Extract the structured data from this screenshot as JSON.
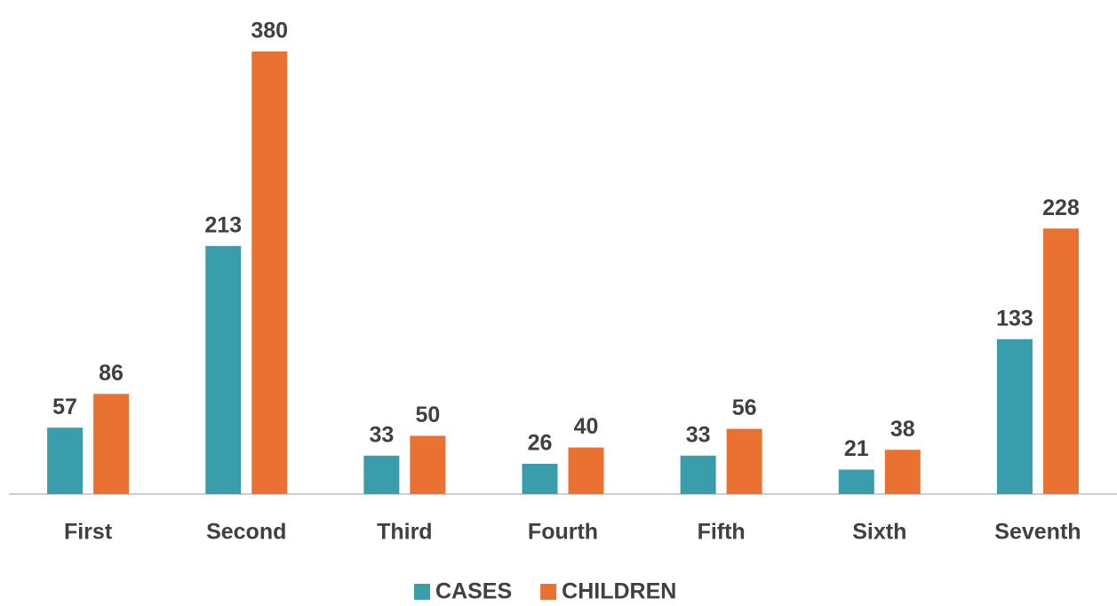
{
  "chart_data": {
    "type": "bar",
    "categories": [
      "First",
      "Second",
      "Third",
      "Fourth",
      "Fifth",
      "Sixth",
      "Seventh"
    ],
    "series": [
      {
        "name": "CASES",
        "color": "#3a9dab",
        "values": [
          57,
          213,
          33,
          26,
          33,
          21,
          133
        ]
      },
      {
        "name": "CHILDREN",
        "color": "#e97132",
        "values": [
          86,
          380,
          50,
          40,
          56,
          38,
          228
        ]
      }
    ],
    "legend": "bottom"
  }
}
